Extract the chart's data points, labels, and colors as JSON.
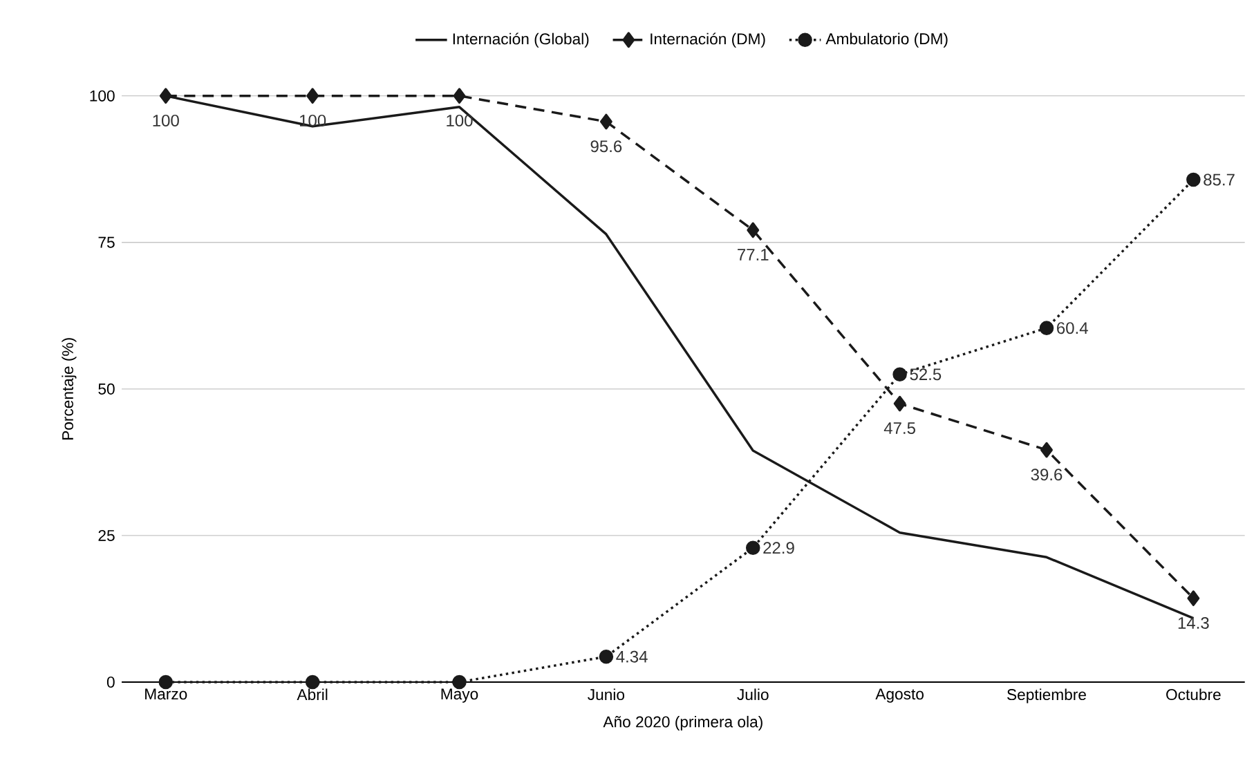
{
  "chart_data": {
    "type": "line",
    "xlabel": "Año 2020 (primera ola)",
    "ylabel": "Porcentaje (%)",
    "categories": [
      "Marzo",
      "Abril",
      "Mayo",
      "Junio",
      "Julio",
      "Agosto",
      "Septiembre",
      "Octubre"
    ],
    "series": [
      {
        "name": "Internación (Global)",
        "color": "#1a1a1a",
        "marker": "none",
        "line_style": "solid",
        "values": [
          100,
          94.8,
          98.1,
          76.4,
          39.5,
          25.5,
          21.3,
          10.9
        ]
      },
      {
        "name": "Internación (DM)",
        "color": "#1a1a1a",
        "marker": "diamond",
        "line_style": "dashed",
        "values": [
          100,
          100,
          100,
          95.6,
          77.1,
          47.5,
          39.6,
          14.3
        ],
        "value_labels": [
          "100",
          "100",
          "100",
          "95.6",
          "77.1",
          "47.5",
          "39.6",
          "14.3"
        ]
      },
      {
        "name": "Ambulatorio (DM)",
        "color": "#1a1a1a",
        "marker": "circle",
        "line_style": "dotted",
        "values": [
          0,
          0,
          0,
          4.34,
          22.9,
          52.5,
          60.4,
          85.7
        ],
        "value_labels": [
          null,
          null,
          null,
          "4.34",
          "22.9",
          "52.5",
          "60.4",
          "85.7"
        ]
      }
    ],
    "ylim": [
      0,
      100
    ],
    "yticks": [
      0,
      25,
      50,
      75,
      100
    ],
    "grid": "y",
    "legend": "top"
  }
}
